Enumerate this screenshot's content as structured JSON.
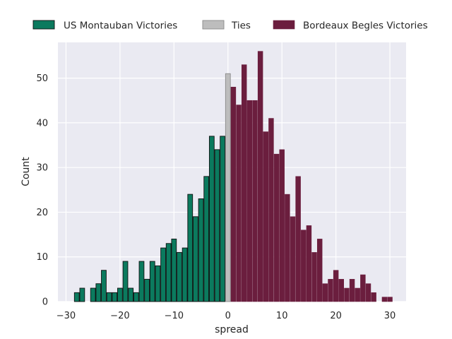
{
  "chart_data": {
    "type": "bar",
    "xlabel": "spread",
    "ylabel": "Count",
    "xlim": [
      -31.5,
      33
    ],
    "ylim": [
      0,
      58
    ],
    "x_ticks": [
      -30,
      -20,
      -10,
      0,
      10,
      20,
      30
    ],
    "x_tick_labels": [
      "−30",
      "−20",
      "−10",
      "0",
      "10",
      "20",
      "30"
    ],
    "y_ticks": [
      0,
      10,
      20,
      30,
      40,
      50
    ],
    "y_tick_labels": [
      "0",
      "10",
      "20",
      "30",
      "40",
      "50"
    ],
    "grid": true,
    "legend_position": "top",
    "series": [
      {
        "name": "US Montauban Victories",
        "color": "#0b7a5e",
        "edge": "#111111",
        "x": [
          -28,
          -27,
          -25,
          -24,
          -23,
          -22,
          -21,
          -20,
          -19,
          -18,
          -17,
          -16,
          -15,
          -14,
          -13,
          -12,
          -11,
          -10,
          -9,
          -8,
          -7,
          -6,
          -5,
          -4,
          -3,
          -2,
          -1
        ],
        "values": [
          2,
          3,
          3,
          4,
          7,
          2,
          2,
          3,
          9,
          3,
          2,
          9,
          5,
          9,
          8,
          12,
          13,
          14,
          11,
          12,
          24,
          19,
          23,
          28,
          37,
          34,
          37
        ]
      },
      {
        "name": "Ties",
        "color": "#bdbdbd",
        "edge": "#8a8a8a",
        "x": [
          0
        ],
        "values": [
          51
        ]
      },
      {
        "name": "Bordeaux Begles Victories",
        "color": "#6b1e3e",
        "edge": "#6b1e3e",
        "x": [
          1,
          2,
          3,
          4,
          5,
          6,
          7,
          8,
          9,
          10,
          11,
          12,
          13,
          14,
          15,
          16,
          17,
          18,
          19,
          20,
          21,
          22,
          23,
          24,
          25,
          26,
          27,
          29,
          30
        ],
        "values": [
          48,
          44,
          53,
          45,
          45,
          56,
          38,
          41,
          33,
          34,
          24,
          19,
          28,
          16,
          17,
          11,
          14,
          4,
          5,
          7,
          5,
          3,
          5,
          3,
          6,
          4,
          2,
          1,
          1
        ]
      }
    ]
  }
}
